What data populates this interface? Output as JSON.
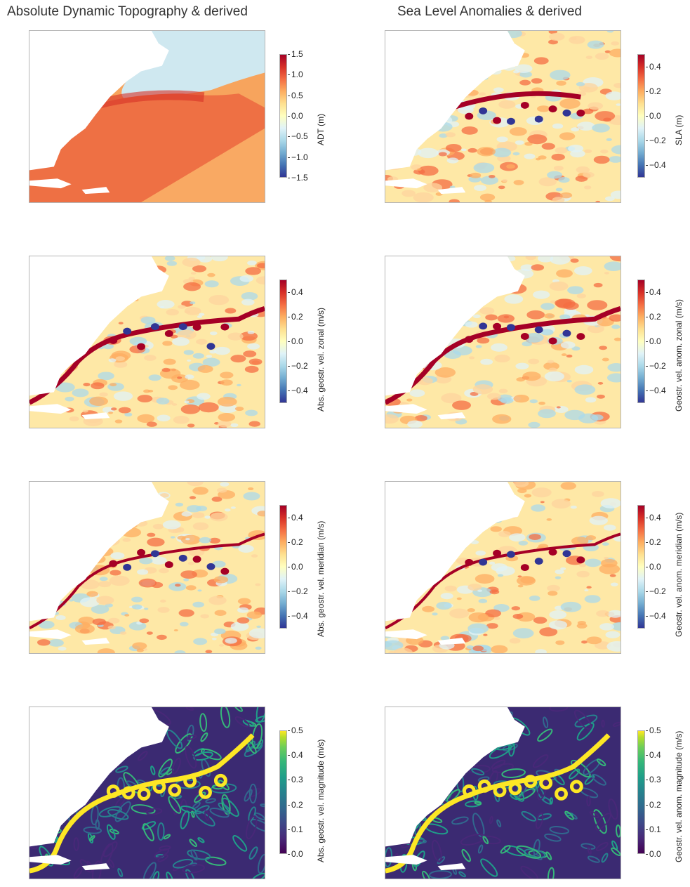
{
  "columns": [
    {
      "title": "Absolute Dynamic Topography & derived"
    },
    {
      "title": "Sea Level Anomalies & derived"
    }
  ],
  "panels": [
    {
      "id": "adt",
      "label": "ADT (m)",
      "cmap": "RdYlBu_r",
      "ticks": [
        "1.5",
        "1.0",
        "0.5",
        "0.0",
        "−0.5",
        "−1.0",
        "−1.5"
      ]
    },
    {
      "id": "sla",
      "label": "SLA (m)",
      "cmap": "RdYlBu_r",
      "ticks": [
        "0.4",
        "0.2",
        "0.0",
        "−0.2",
        "−0.4"
      ]
    },
    {
      "id": "ugos",
      "label": "Abs. geostr. vel. zonal (m/s)",
      "cmap": "RdYlBu_r",
      "ticks": [
        "0.4",
        "0.2",
        "0.0",
        "−0.2",
        "−0.4"
      ]
    },
    {
      "id": "ugosa",
      "label": "Geostr. vel. anom. zonal (m/s)",
      "cmap": "RdYlBu_r",
      "ticks": [
        "0.4",
        "0.2",
        "0.0",
        "−0.2",
        "−0.4"
      ]
    },
    {
      "id": "vgos",
      "label": "Abs. geostr. vel. meridian (m/s)",
      "cmap": "RdYlBu_r",
      "ticks": [
        "0.4",
        "0.2",
        "0.0",
        "−0.2",
        "−0.4"
      ]
    },
    {
      "id": "vgosa",
      "label": "Geostr. vel. anom. meridian (m/s)",
      "cmap": "RdYlBu_r",
      "ticks": [
        "0.4",
        "0.2",
        "0.0",
        "−0.2",
        "−0.4"
      ]
    },
    {
      "id": "speed",
      "label": "Abs. geostr. vel. magnitude (m/s)",
      "cmap": "viridis",
      "ticks": [
        "0.5",
        "0.4",
        "0.3",
        "0.2",
        "0.1",
        "0.0"
      ]
    },
    {
      "id": "speeda",
      "label": "Geostr. vel. anom. magnitude (m/s)",
      "cmap": "viridis",
      "ticks": [
        "0.5",
        "0.4",
        "0.3",
        "0.2",
        "0.1",
        "0.0"
      ]
    }
  ],
  "chart_data": [
    {
      "type": "heatmap",
      "title": "Absolute Dynamic Topography & derived",
      "colorbar_label": "ADT (m)",
      "colormap": "RdYlBu_r",
      "vmin": -1.5,
      "vmax": 1.5,
      "colorbar_ticks": [
        1.5,
        1.0,
        0.5,
        0.0,
        -0.5,
        -1.0,
        -1.5
      ]
    },
    {
      "type": "heatmap",
      "title": "Sea Level Anomalies & derived",
      "colorbar_label": "SLA (m)",
      "colormap": "RdYlBu_r",
      "vmin": -0.5,
      "vmax": 0.5,
      "colorbar_ticks": [
        0.4,
        0.2,
        0.0,
        -0.2,
        -0.4
      ]
    },
    {
      "type": "heatmap",
      "colorbar_label": "Abs. geostr. vel. zonal (m/s)",
      "colormap": "RdYlBu_r",
      "vmin": -0.5,
      "vmax": 0.5,
      "colorbar_ticks": [
        0.4,
        0.2,
        0.0,
        -0.2,
        -0.4
      ]
    },
    {
      "type": "heatmap",
      "colorbar_label": "Geostr. vel. anom. zonal (m/s)",
      "colormap": "RdYlBu_r",
      "vmin": -0.5,
      "vmax": 0.5,
      "colorbar_ticks": [
        0.4,
        0.2,
        0.0,
        -0.2,
        -0.4
      ]
    },
    {
      "type": "heatmap",
      "colorbar_label": "Abs. geostr. vel. meridian (m/s)",
      "colormap": "RdYlBu_r",
      "vmin": -0.5,
      "vmax": 0.5,
      "colorbar_ticks": [
        0.4,
        0.2,
        0.0,
        -0.2,
        -0.4
      ]
    },
    {
      "type": "heatmap",
      "colorbar_label": "Geostr. vel. anom. meridian (m/s)",
      "colormap": "RdYlBu_r",
      "vmin": -0.5,
      "vmax": 0.5,
      "colorbar_ticks": [
        0.4,
        0.2,
        0.0,
        -0.2,
        -0.4
      ]
    },
    {
      "type": "heatmap",
      "colorbar_label": "Abs. geostr. vel. magnitude (m/s)",
      "colormap": "viridis",
      "vmin": 0.0,
      "vmax": 0.5,
      "colorbar_ticks": [
        0.5,
        0.4,
        0.3,
        0.2,
        0.1,
        0.0
      ]
    },
    {
      "type": "heatmap",
      "colorbar_label": "Geostr. vel. anom. magnitude (m/s)",
      "colormap": "viridis",
      "vmin": 0.0,
      "vmax": 0.5,
      "colorbar_ticks": [
        0.5,
        0.4,
        0.3,
        0.2,
        0.1,
        0.0
      ]
    }
  ]
}
